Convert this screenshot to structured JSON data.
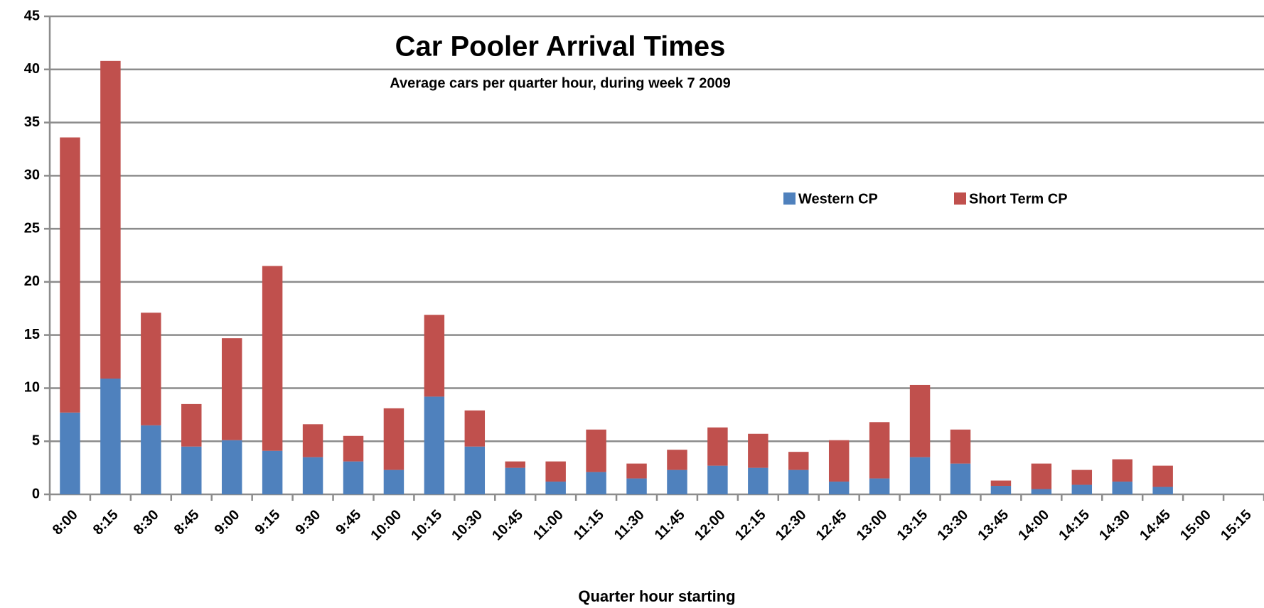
{
  "chart_data": {
    "type": "bar",
    "stacked": true,
    "title": "Car Pooler Arrival Times",
    "subtitle": "Average cars per quarter hour, during week 7 2009",
    "x_label": "Quarter hour starting",
    "categories": [
      "8:00",
      "8:15",
      "8:30",
      "8:45",
      "9:00",
      "9:15",
      "9:30",
      "9:45",
      "10:00",
      "10:15",
      "10:30",
      "10:45",
      "11:00",
      "11:15",
      "11:30",
      "11:45",
      "12:00",
      "12:15",
      "12:30",
      "12:45",
      "13:00",
      "13:15",
      "13:30",
      "13:45",
      "14:00",
      "14:15",
      "14:30",
      "14:45",
      "15:00",
      "15:15"
    ],
    "series": [
      {
        "name": "Western CP",
        "color": "#4f81bd",
        "values": [
          7.7,
          10.9,
          6.5,
          4.5,
          5.1,
          4.1,
          3.5,
          3.1,
          2.3,
          9.2,
          4.5,
          2.5,
          1.2,
          2.1,
          1.5,
          2.3,
          2.7,
          2.5,
          2.3,
          1.2,
          1.5,
          3.5,
          2.9,
          0.8,
          0.5,
          0.9,
          1.2,
          0.7,
          null,
          null
        ]
      },
      {
        "name": "Short Term CP",
        "color": "#c0504d",
        "values": [
          25.9,
          29.9,
          10.6,
          4.0,
          9.6,
          17.4,
          3.1,
          2.4,
          5.8,
          7.7,
          3.4,
          0.6,
          1.9,
          4.0,
          1.4,
          1.9,
          3.6,
          3.2,
          1.7,
          3.9,
          5.3,
          6.8,
          3.2,
          0.5,
          2.4,
          1.4,
          2.1,
          2.0,
          null,
          null
        ]
      }
    ],
    "ylim": [
      0,
      45
    ],
    "yticks": [
      0,
      5,
      10,
      15,
      20,
      25,
      30,
      35,
      40,
      45
    ],
    "grid": true,
    "legend": "upper right"
  }
}
